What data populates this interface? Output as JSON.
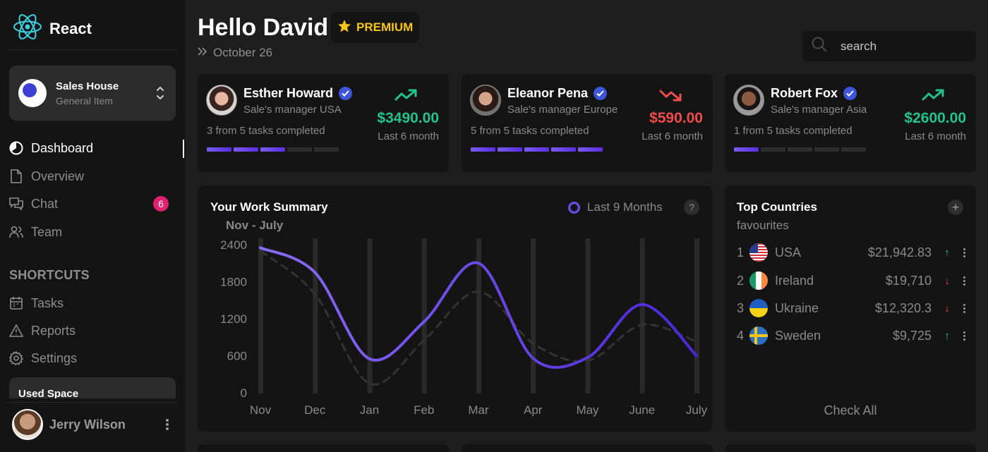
{
  "app": {
    "title": "React"
  },
  "workspace": {
    "name": "Sales House",
    "subtitle": "General Item"
  },
  "nav": {
    "items": [
      {
        "label": "Dashboard",
        "icon": "dashboard-icon",
        "active": true
      },
      {
        "label": "Overview",
        "icon": "document-icon"
      },
      {
        "label": "Chat",
        "icon": "chat-icon",
        "badge": "6"
      },
      {
        "label": "Team",
        "icon": "team-icon"
      }
    ],
    "shortcuts_label": "SHORTCUTS",
    "shortcuts": [
      {
        "label": "Tasks",
        "icon": "calendar-icon"
      },
      {
        "label": "Reports",
        "icon": "warning-icon"
      },
      {
        "label": "Settings",
        "icon": "gear-icon"
      }
    ],
    "used_space_label": "Used Space"
  },
  "user": {
    "name": "Jerry Wilson"
  },
  "header": {
    "greeting": "Hello David",
    "premium": "PREMIUM",
    "date": "October 26",
    "search_placeholder": "search"
  },
  "managers": [
    {
      "name": "Esther Howard",
      "role": "Sale's manager USA",
      "tasks": "3 from 5 tasks completed",
      "amount": "$3490.00",
      "period": "Last 6 month",
      "trend": "up",
      "completed": 3,
      "total": 5
    },
    {
      "name": "Eleanor Pena",
      "role": "Sale's manager Europe",
      "tasks": "5 from 5 tasks completed",
      "amount": "$590.00",
      "period": "Last 6 month",
      "trend": "down",
      "completed": 5,
      "total": 5
    },
    {
      "name": "Robert Fox",
      "role": "Sale's manager Asia",
      "tasks": "1 from 5 tasks completed",
      "amount": "$2600.00",
      "period": "Last 6 month",
      "trend": "up",
      "completed": 1,
      "total": 5
    }
  ],
  "summary": {
    "title": "Your Work Summary",
    "subtitle": "Nov - July",
    "range_label": "Last 9 Months",
    "help": "?"
  },
  "chart_data": {
    "type": "line",
    "categories": [
      "Nov",
      "Dec",
      "Jan",
      "Feb",
      "Mar",
      "Apr",
      "May",
      "June",
      "July"
    ],
    "series": [
      {
        "values": [
          2350,
          1950,
          550,
          1150,
          2100,
          560,
          570,
          1430,
          600
        ],
        "color": "#7b5cf2",
        "style": "solid"
      },
      {
        "values": [
          2300,
          1600,
          150,
          850,
          1640,
          800,
          520,
          1100,
          830
        ],
        "color": "#333333",
        "style": "dashed"
      }
    ],
    "yticks": [
      0,
      600,
      1200,
      1800,
      2400
    ],
    "ylim": [
      0,
      2400
    ],
    "grid": "vertical bars"
  },
  "countries": {
    "title": "Top Countries",
    "subtitle": "favourites",
    "add": "+",
    "check_all": "Check All",
    "rows": [
      {
        "rank": "1",
        "name": "USA",
        "amount": "$21,942.83",
        "trend": "up",
        "flag": "usa"
      },
      {
        "rank": "2",
        "name": "Ireland",
        "amount": "$19,710",
        "trend": "down",
        "flag": "ireland"
      },
      {
        "rank": "3",
        "name": "Ukraine",
        "amount": "$12,320.3",
        "trend": "down",
        "flag": "ukraine"
      },
      {
        "rank": "4",
        "name": "Sweden",
        "amount": "$9,725",
        "trend": "up",
        "flag": "sweden"
      }
    ]
  },
  "colors": {
    "up": "#22c38b",
    "down": "#f04c4c",
    "accent": "#6a4de6",
    "badge": "#e0216e",
    "premium": "#f5c518"
  }
}
